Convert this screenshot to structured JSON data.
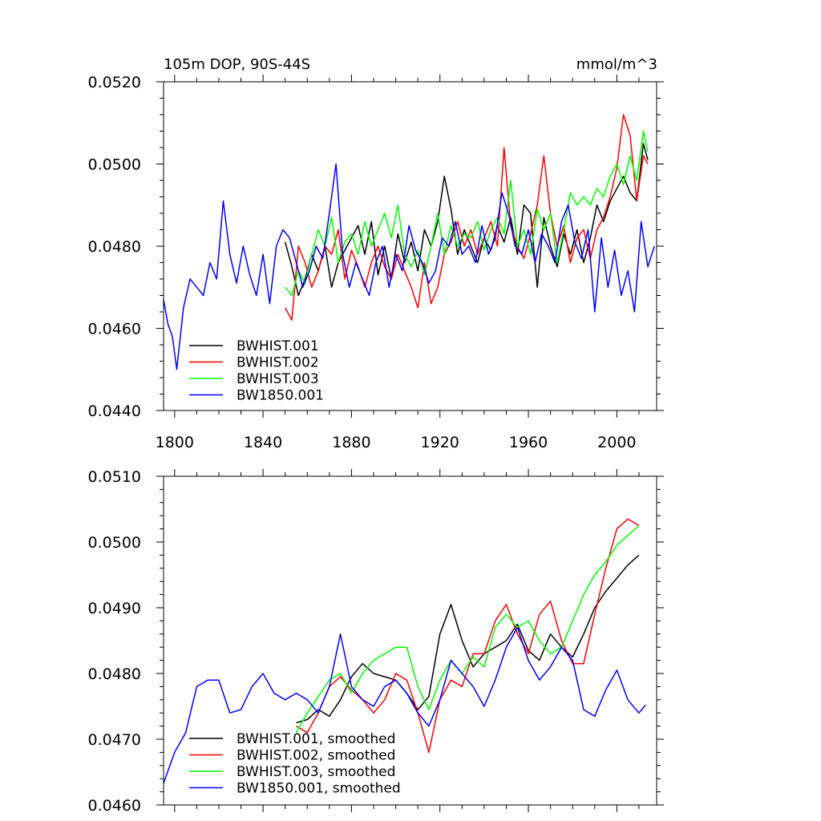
{
  "chart_data": [
    {
      "type": "line",
      "title": "105m DOP, 90S-44S",
      "units": "mmol/m^3",
      "xlabel": "",
      "ylabel": "",
      "xlim": [
        1795,
        2018
      ],
      "ylim": [
        0.044,
        0.052
      ],
      "xticks": [
        1800,
        1840,
        1880,
        1920,
        1960,
        2000
      ],
      "yticks": [
        0.044,
        0.046,
        0.048,
        0.05,
        0.052
      ],
      "ytick_labels": [
        "0.0440",
        "0.0460",
        "0.0480",
        "0.0500",
        "0.0520"
      ],
      "legend_position": "bottom-left",
      "series": [
        {
          "name": "BWHIST.001",
          "color": "#000000",
          "x": [
            1850,
            1853,
            1856,
            1859,
            1862,
            1865,
            1868,
            1871,
            1874,
            1877,
            1880,
            1883,
            1886,
            1889,
            1892,
            1895,
            1898,
            1901,
            1904,
            1907,
            1910,
            1913,
            1916,
            1919,
            1922,
            1925,
            1928,
            1931,
            1934,
            1937,
            1940,
            1943,
            1946,
            1949,
            1952,
            1955,
            1958,
            1961,
            1964,
            1967,
            1970,
            1973,
            1976,
            1979,
            1982,
            1985,
            1988,
            1991,
            1994,
            1997,
            2000,
            2003,
            2006,
            2009,
            2012,
            2014
          ],
          "y": [
            0.0481,
            0.0475,
            0.0468,
            0.0472,
            0.0478,
            0.0474,
            0.048,
            0.047,
            0.0476,
            0.0479,
            0.0482,
            0.0485,
            0.0478,
            0.0486,
            0.0473,
            0.048,
            0.0472,
            0.0483,
            0.0476,
            0.0481,
            0.0474,
            0.0484,
            0.048,
            0.0486,
            0.0497,
            0.0489,
            0.0478,
            0.0484,
            0.048,
            0.0476,
            0.0482,
            0.0479,
            0.0485,
            0.0481,
            0.0487,
            0.0478,
            0.049,
            0.0488,
            0.047,
            0.0487,
            0.048,
            0.0475,
            0.0483,
            0.0478,
            0.0484,
            0.0476,
            0.0482,
            0.049,
            0.0486,
            0.0491,
            0.0494,
            0.0497,
            0.0493,
            0.0491,
            0.0505,
            0.0501
          ]
        },
        {
          "name": "BWHIST.002",
          "color": "#ff0000",
          "x": [
            1850,
            1853,
            1856,
            1859,
            1862,
            1865,
            1868,
            1871,
            1874,
            1877,
            1880,
            1883,
            1886,
            1889,
            1892,
            1895,
            1898,
            1901,
            1904,
            1907,
            1910,
            1913,
            1916,
            1919,
            1922,
            1925,
            1928,
            1931,
            1934,
            1937,
            1940,
            1943,
            1946,
            1949,
            1952,
            1955,
            1958,
            1961,
            1964,
            1967,
            1970,
            1973,
            1976,
            1979,
            1982,
            1985,
            1988,
            1991,
            1994,
            1997,
            2000,
            2003,
            2006,
            2009,
            2012,
            2014
          ],
          "y": [
            0.0465,
            0.0462,
            0.048,
            0.0476,
            0.047,
            0.0474,
            0.048,
            0.0478,
            0.0484,
            0.0472,
            0.0479,
            0.0475,
            0.047,
            0.0476,
            0.048,
            0.0475,
            0.0472,
            0.0478,
            0.0474,
            0.047,
            0.0465,
            0.0476,
            0.0466,
            0.047,
            0.0478,
            0.0481,
            0.0486,
            0.048,
            0.0484,
            0.0478,
            0.0482,
            0.0486,
            0.048,
            0.0504,
            0.0485,
            0.048,
            0.0477,
            0.0483,
            0.049,
            0.0502,
            0.0488,
            0.048,
            0.0485,
            0.0476,
            0.0482,
            0.0484,
            0.0477,
            0.0484,
            0.0487,
            0.0492,
            0.0499,
            0.0512,
            0.0507,
            0.0491,
            0.0502,
            0.05
          ]
        },
        {
          "name": "BWHIST.003",
          "color": "#00ff00",
          "x": [
            1850,
            1853,
            1856,
            1859,
            1862,
            1865,
            1868,
            1871,
            1874,
            1877,
            1880,
            1883,
            1886,
            1889,
            1892,
            1895,
            1898,
            1901,
            1904,
            1907,
            1910,
            1913,
            1916,
            1919,
            1922,
            1925,
            1928,
            1931,
            1934,
            1937,
            1940,
            1943,
            1946,
            1949,
            1952,
            1955,
            1958,
            1961,
            1964,
            1967,
            1970,
            1973,
            1976,
            1979,
            1982,
            1985,
            1988,
            1991,
            1994,
            1997,
            2000,
            2003,
            2006,
            2009,
            2012,
            2014
          ],
          "y": [
            0.047,
            0.0468,
            0.0474,
            0.0471,
            0.0478,
            0.0484,
            0.048,
            0.0487,
            0.0476,
            0.0481,
            0.0483,
            0.0478,
            0.0486,
            0.048,
            0.0484,
            0.0488,
            0.0482,
            0.049,
            0.0478,
            0.0475,
            0.0479,
            0.0473,
            0.048,
            0.0488,
            0.0478,
            0.0485,
            0.048,
            0.0483,
            0.0482,
            0.0486,
            0.0479,
            0.0484,
            0.0487,
            0.0483,
            0.0496,
            0.048,
            0.0484,
            0.0478,
            0.0489,
            0.0484,
            0.0488,
            0.0476,
            0.0484,
            0.0493,
            0.049,
            0.0492,
            0.049,
            0.0494,
            0.0492,
            0.0497,
            0.05,
            0.0495,
            0.0502,
            0.0496,
            0.0508,
            0.0503
          ]
        },
        {
          "name": "BW1850.001",
          "color": "#0000ff",
          "x": [
            1795,
            1797,
            1799,
            1801,
            1804,
            1807,
            1810,
            1813,
            1816,
            1819,
            1822,
            1825,
            1828,
            1831,
            1834,
            1837,
            1840,
            1843,
            1846,
            1849,
            1852,
            1855,
            1858,
            1861,
            1864,
            1867,
            1870,
            1873,
            1876,
            1879,
            1882,
            1885,
            1888,
            1891,
            1894,
            1897,
            1900,
            1903,
            1906,
            1909,
            1912,
            1915,
            1918,
            1921,
            1924,
            1927,
            1930,
            1933,
            1936,
            1939,
            1942,
            1945,
            1948,
            1951,
            1954,
            1957,
            1960,
            1963,
            1966,
            1969,
            1972,
            1975,
            1978,
            1981,
            1984,
            1987,
            1990,
            1993,
            1996,
            1999,
            2002,
            2005,
            2008,
            2011,
            2014,
            2017
          ],
          "y": [
            0.0467,
            0.0461,
            0.0458,
            0.045,
            0.0465,
            0.0472,
            0.047,
            0.0468,
            0.0476,
            0.0472,
            0.0491,
            0.0478,
            0.0471,
            0.048,
            0.0473,
            0.0468,
            0.0478,
            0.0466,
            0.048,
            0.0484,
            0.0482,
            0.0476,
            0.047,
            0.0474,
            0.048,
            0.0477,
            0.0488,
            0.05,
            0.0478,
            0.047,
            0.0476,
            0.0472,
            0.0468,
            0.0476,
            0.048,
            0.047,
            0.0478,
            0.0474,
            0.0485,
            0.0479,
            0.0476,
            0.0471,
            0.0474,
            0.0482,
            0.048,
            0.0486,
            0.0478,
            0.048,
            0.0476,
            0.0485,
            0.0478,
            0.0482,
            0.0493,
            0.0488,
            0.048,
            0.0478,
            0.0484,
            0.0476,
            0.0483,
            0.048,
            0.0476,
            0.0486,
            0.049,
            0.0481,
            0.0477,
            0.0484,
            0.0464,
            0.0482,
            0.047,
            0.0479,
            0.0468,
            0.0474,
            0.0464,
            0.0486,
            0.0475,
            0.048
          ]
        }
      ]
    },
    {
      "type": "line",
      "title": "",
      "xlabel": "",
      "ylabel": "",
      "xlim": [
        1795,
        2018
      ],
      "ylim": [
        0.046,
        0.051
      ],
      "xticks": [
        1800,
        1840,
        1880,
        1920,
        1960,
        2000
      ],
      "yticks": [
        0.046,
        0.047,
        0.048,
        0.049,
        0.05,
        0.051
      ],
      "ytick_labels": [
        "0.0460",
        "0.0470",
        "0.0480",
        "0.0490",
        "0.0500",
        "0.0510"
      ],
      "legend_position": "bottom-left",
      "series": [
        {
          "name": "BWHIST.001, smoothed",
          "color": "#000000",
          "x": [
            1855,
            1860,
            1865,
            1870,
            1875,
            1880,
            1885,
            1890,
            1895,
            1900,
            1905,
            1910,
            1915,
            1920,
            1925,
            1930,
            1935,
            1940,
            1945,
            1950,
            1955,
            1960,
            1965,
            1970,
            1975,
            1980,
            1985,
            1990,
            1995,
            2000,
            2005,
            2010
          ],
          "y": [
            0.04725,
            0.0473,
            0.04745,
            0.04735,
            0.0476,
            0.04795,
            0.04815,
            0.048,
            0.04795,
            0.0479,
            0.0477,
            0.04745,
            0.04765,
            0.0486,
            0.04905,
            0.0485,
            0.0481,
            0.0483,
            0.0484,
            0.0485,
            0.04875,
            0.04835,
            0.0482,
            0.0486,
            0.0484,
            0.04825,
            0.0486,
            0.049,
            0.04925,
            0.04945,
            0.04965,
            0.0498
          ]
        },
        {
          "name": "BWHIST.002, smoothed",
          "color": "#ff0000",
          "x": [
            1855,
            1860,
            1865,
            1870,
            1875,
            1880,
            1885,
            1890,
            1895,
            1900,
            1905,
            1910,
            1915,
            1920,
            1925,
            1930,
            1935,
            1940,
            1945,
            1950,
            1955,
            1960,
            1965,
            1970,
            1975,
            1980,
            1985,
            1990,
            1995,
            2000,
            2005,
            2010
          ],
          "y": [
            0.0472,
            0.0471,
            0.0474,
            0.0478,
            0.04795,
            0.04775,
            0.0476,
            0.0474,
            0.0476,
            0.048,
            0.0479,
            0.0474,
            0.0468,
            0.0476,
            0.0479,
            0.0478,
            0.0483,
            0.0483,
            0.0488,
            0.04905,
            0.0486,
            0.0483,
            0.0489,
            0.0491,
            0.0485,
            0.04815,
            0.04815,
            0.0489,
            0.0496,
            0.0502,
            0.05035,
            0.05025
          ]
        },
        {
          "name": "BWHIST.003, smoothed",
          "color": "#00ff00",
          "x": [
            1855,
            1860,
            1865,
            1870,
            1875,
            1880,
            1885,
            1890,
            1895,
            1900,
            1905,
            1910,
            1915,
            1920,
            1925,
            1930,
            1935,
            1940,
            1945,
            1950,
            1955,
            1960,
            1965,
            1970,
            1975,
            1980,
            1985,
            1990,
            1995,
            2000,
            2005,
            2010
          ],
          "y": [
            0.0471,
            0.0474,
            0.04765,
            0.0479,
            0.048,
            0.0477,
            0.048,
            0.0482,
            0.0483,
            0.0484,
            0.0484,
            0.0478,
            0.04745,
            0.0479,
            0.0482,
            0.048,
            0.04825,
            0.0481,
            0.0487,
            0.0489,
            0.0487,
            0.0488,
            0.0485,
            0.0483,
            0.0484,
            0.0488,
            0.0492,
            0.0495,
            0.0497,
            0.04995,
            0.0501,
            0.05025
          ]
        },
        {
          "name": "BW1850.001, smoothed",
          "color": "#0000ff",
          "x": [
            1795,
            1800,
            1805,
            1810,
            1815,
            1820,
            1825,
            1830,
            1835,
            1840,
            1845,
            1850,
            1855,
            1860,
            1865,
            1870,
            1875,
            1880,
            1885,
            1890,
            1895,
            1900,
            1905,
            1910,
            1915,
            1920,
            1925,
            1930,
            1935,
            1940,
            1945,
            1950,
            1955,
            1960,
            1965,
            1970,
            1975,
            1980,
            1985,
            1990,
            1995,
            2000,
            2005,
            2010,
            2013
          ],
          "y": [
            0.04633,
            0.0468,
            0.0471,
            0.0478,
            0.0479,
            0.0479,
            0.0474,
            0.04745,
            0.0478,
            0.048,
            0.0477,
            0.0476,
            0.0477,
            0.0476,
            0.0474,
            0.0478,
            0.0486,
            0.0478,
            0.0476,
            0.0475,
            0.0478,
            0.0479,
            0.0477,
            0.0474,
            0.0472,
            0.0476,
            0.0482,
            0.048,
            0.0478,
            0.0475,
            0.0479,
            0.0484,
            0.0487,
            0.0482,
            0.0479,
            0.0481,
            0.0484,
            0.0482,
            0.04745,
            0.04735,
            0.04775,
            0.04805,
            0.0476,
            0.0474,
            0.04752
          ]
        }
      ]
    }
  ]
}
